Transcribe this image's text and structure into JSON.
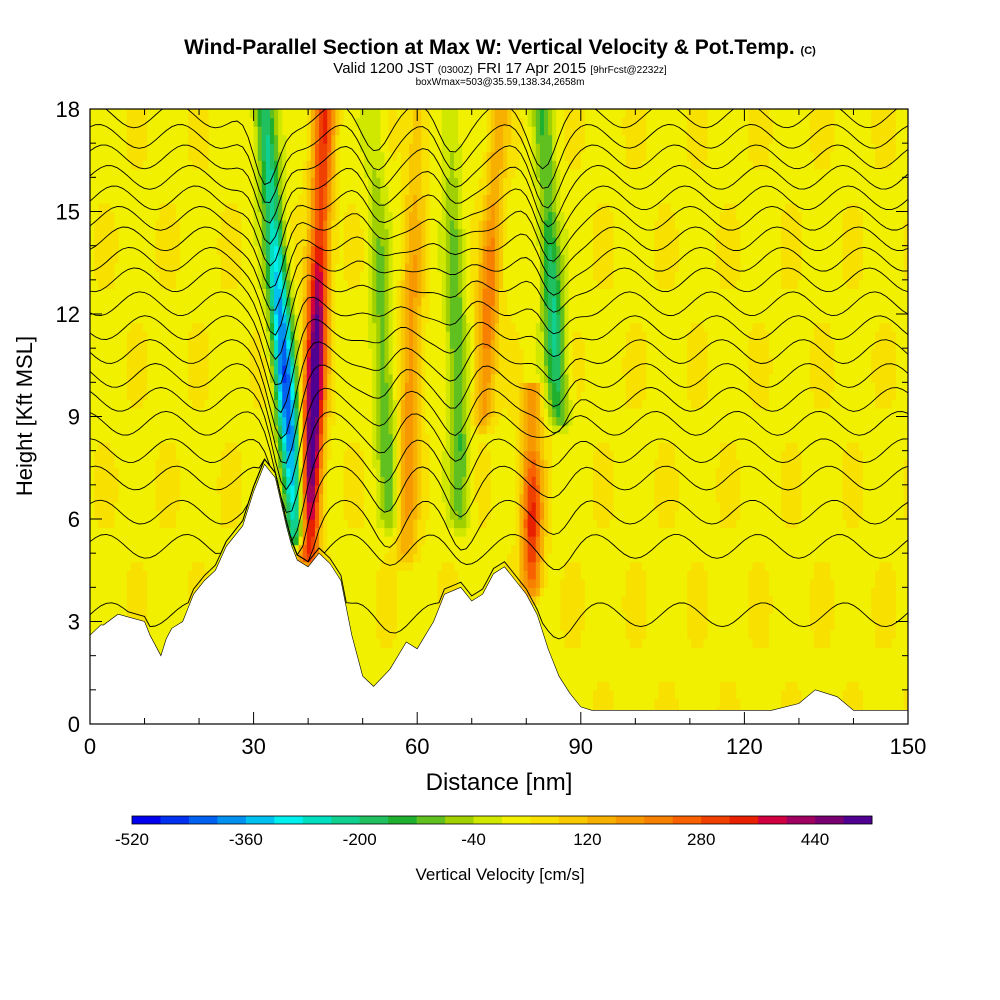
{
  "header": {
    "title": "Wind-Parallel Section at Max W: Vertical Velocity & Pot.Temp.",
    "title_mark": "(C)",
    "valid_main": "Valid 1200 JST",
    "valid_utc": "(0300Z)",
    "valid_date": "FRI 17 Apr 2015",
    "forecast": "[9hrFcst@2232z]",
    "box_info": "boxWmax=503@35.59,138.34,2658m"
  },
  "chart_data": {
    "type": "heatmap",
    "xlabel": "Distance [nm]",
    "ylabel": "Height [Kft MSL]",
    "xlim": [
      0,
      150
    ],
    "ylim": [
      0,
      18
    ],
    "x_ticks": [
      0,
      30,
      60,
      90,
      120,
      150
    ],
    "y_ticks": [
      0,
      3,
      6,
      9,
      12,
      15,
      18
    ],
    "colorbar": {
      "label": "Vertical Velocity [cm/s]",
      "ticks": [
        "-520",
        "-360",
        "-200",
        "-40",
        "120",
        "280",
        "440"
      ],
      "min": -520,
      "max": 520,
      "step": 40,
      "colors": [
        "#0000f0",
        "#0030f0",
        "#0060f0",
        "#0090f0",
        "#00c0f0",
        "#00f0f0",
        "#00e0c0",
        "#10d090",
        "#20c060",
        "#20b030",
        "#60c020",
        "#a0d000",
        "#d0e800",
        "#f0f000",
        "#f8e000",
        "#f8c800",
        "#f8b000",
        "#f89800",
        "#f88000",
        "#f86000",
        "#f04000",
        "#e82000",
        "#d00040",
        "#a00060",
        "#780070",
        "#500090"
      ]
    },
    "terrain_profile": {
      "x": [
        0,
        2,
        2.5,
        5,
        5.5,
        10,
        11,
        13,
        14,
        15,
        17,
        18,
        19,
        21,
        23,
        25,
        28,
        30,
        32,
        34,
        35,
        36,
        37,
        38,
        40,
        42,
        44,
        46,
        48,
        50,
        52,
        55,
        58,
        60,
        63,
        65,
        68,
        70,
        72,
        74,
        76,
        78,
        80,
        82,
        84,
        86,
        88,
        90,
        92,
        95,
        100,
        105,
        110,
        115,
        120,
        125,
        130,
        133,
        137,
        140,
        145,
        150
      ],
      "y": [
        2.6,
        2.9,
        2.9,
        3.2,
        3.2,
        3,
        2.6,
        2.0,
        2.5,
        2.8,
        3.0,
        3.4,
        3.8,
        4.2,
        4.5,
        5.2,
        5.8,
        6.8,
        7.6,
        7.2,
        6.5,
        5.8,
        5.2,
        4.8,
        4.6,
        5.0,
        4.7,
        4.2,
        2.6,
        1.4,
        1.1,
        1.6,
        2.4,
        2.2,
        3.0,
        3.8,
        4.0,
        3.6,
        3.8,
        4.4,
        4.6,
        4.2,
        3.8,
        3.2,
        2.2,
        1.4,
        0.9,
        0.5,
        0.4,
        0.4,
        0.4,
        0.4,
        0.4,
        0.4,
        0.4,
        0.4,
        0.6,
        1.0,
        0.8,
        0.4,
        0.4,
        0.4
      ]
    },
    "updrafts": [
      {
        "x_bottom": 40,
        "x_top": 43,
        "y_bottom": 5,
        "y_top": 18,
        "peak_w": 503
      },
      {
        "x_bottom": 81,
        "x_top": 81,
        "y_bottom": 4,
        "y_top": 9.5,
        "peak_w": 300
      },
      {
        "x_bottom": 58,
        "x_top": 60,
        "y_bottom": 5,
        "y_top": 18,
        "peak_w": 160
      },
      {
        "x_bottom": 72,
        "x_top": 75,
        "y_bottom": 9,
        "y_top": 18,
        "peak_w": 200
      }
    ],
    "downdrafts": [
      {
        "x_bottom": 38,
        "x_top": 32,
        "y_bottom": 5.5,
        "y_top": 18,
        "peak_w": -460
      },
      {
        "x_bottom": 86,
        "x_top": 83,
        "y_bottom": 9,
        "y_top": 18,
        "peak_w": -240
      },
      {
        "x_bottom": 68,
        "x_top": 66,
        "y_bottom": 6,
        "y_top": 18,
        "peak_w": -160
      },
      {
        "x_bottom": 55,
        "x_top": 52,
        "y_bottom": 6,
        "y_top": 18,
        "peak_w": -140
      }
    ],
    "isentrope_base_heights": [
      3.2,
      5.2,
      6.2,
      7.2,
      8.0,
      8.8,
      9.5,
      10.2,
      10.9,
      11.6,
      12.3,
      13.0,
      13.6,
      14.2,
      14.8,
      15.4,
      16.0,
      16.6,
      17.2,
      17.8
    ]
  }
}
